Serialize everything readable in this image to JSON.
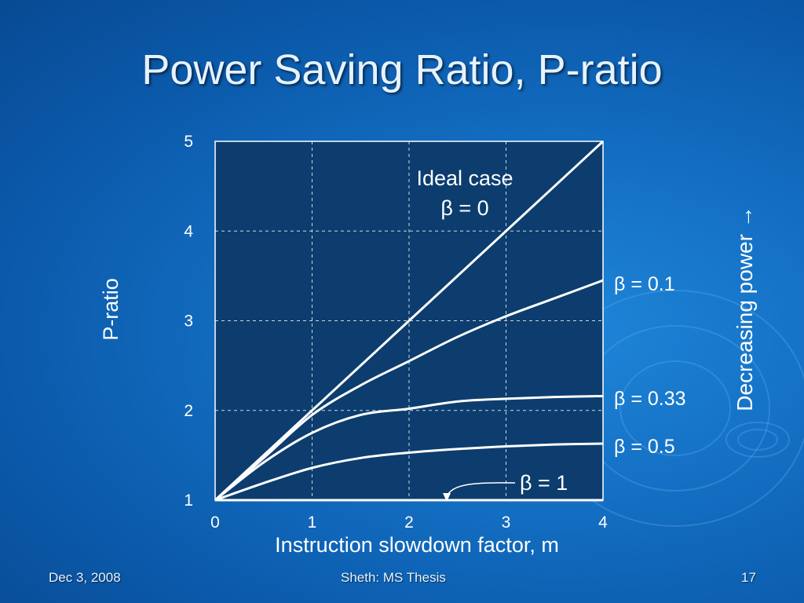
{
  "slide": {
    "title": "Power Saving Ratio, P-ratio",
    "footer_left": "Dec 3, 2008",
    "footer_center": "Sheth: MS Thesis",
    "footer_right": "17"
  },
  "chart_data": {
    "type": "line",
    "title": "",
    "xlabel": "Instruction slowdown factor, m",
    "ylabel": "P-ratio",
    "xlim": [
      0,
      4
    ],
    "ylim": [
      1,
      5
    ],
    "xticks": [
      "0",
      "1",
      "2",
      "3",
      "4"
    ],
    "yticks": [
      "1",
      "2",
      "3",
      "4",
      "5"
    ],
    "grid": true,
    "side_annotation": "Decreasing power →",
    "series": [
      {
        "label_lines": [
          "Ideal case",
          "β = 0"
        ],
        "x": [
          0,
          1,
          2,
          3,
          4
        ],
        "y": [
          1,
          2,
          3,
          4,
          5
        ]
      },
      {
        "label_lines": [
          "β = 0.1"
        ],
        "x": [
          0,
          0.5,
          1,
          1.5,
          2,
          2.5,
          3,
          3.5,
          4
        ],
        "y": [
          1,
          1.47,
          1.95,
          2.28,
          2.55,
          2.82,
          3.05,
          3.25,
          3.45
        ]
      },
      {
        "label_lines": [
          "β = 0.33"
        ],
        "x": [
          0,
          0.5,
          1,
          1.5,
          2,
          2.5,
          3,
          3.5,
          4
        ],
        "y": [
          1,
          1.42,
          1.75,
          1.95,
          2.02,
          2.1,
          2.13,
          2.15,
          2.16
        ]
      },
      {
        "label_lines": [
          "β = 0.5"
        ],
        "x": [
          0,
          0.5,
          1,
          1.5,
          2,
          2.5,
          3,
          3.5,
          4
        ],
        "y": [
          1,
          1.19,
          1.36,
          1.47,
          1.53,
          1.57,
          1.6,
          1.62,
          1.63
        ]
      },
      {
        "label_lines": [
          "β = 1"
        ],
        "x": [
          0,
          4
        ],
        "y": [
          1,
          1
        ]
      }
    ]
  }
}
